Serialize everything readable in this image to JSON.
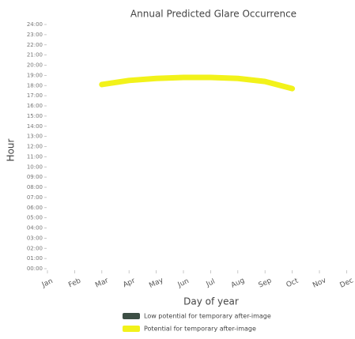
{
  "chart_data": {
    "type": "line",
    "title": "Annual Predicted Glare Occurrence",
    "x_label": "Day of year",
    "y_label": "Hour",
    "categories": [
      "Jan",
      "Feb",
      "Mar",
      "Apr",
      "May",
      "Jun",
      "Jul",
      "Aug",
      "Sep",
      "Oct",
      "Nov",
      "Dec"
    ],
    "series": [
      {
        "name": "Low potential for temporary after-image",
        "color": "#3d4f45",
        "values": [
          null,
          null,
          null,
          null,
          null,
          null,
          null,
          null,
          null,
          null,
          null,
          null
        ]
      },
      {
        "name": "Potential for temporary after-image",
        "color": "#f2f21a",
        "values": [
          null,
          null,
          18.1,
          18.5,
          18.7,
          18.8,
          18.8,
          18.7,
          18.4,
          17.7,
          null,
          null
        ]
      }
    ],
    "ylim": [
      0,
      24
    ],
    "yticks": [
      {
        "value": 0,
        "label": "00:00"
      },
      {
        "value": 1,
        "label": "01:00"
      },
      {
        "value": 2,
        "label": "02:00"
      },
      {
        "value": 3,
        "label": "03:00"
      },
      {
        "value": 4,
        "label": "04:00"
      },
      {
        "value": 5,
        "label": "05:00"
      },
      {
        "value": 6,
        "label": "06:00"
      },
      {
        "value": 7,
        "label": "07:00"
      },
      {
        "value": 8,
        "label": "08:00"
      },
      {
        "value": 9,
        "label": "09:00"
      },
      {
        "value": 10,
        "label": "10:00"
      },
      {
        "value": 11,
        "label": "11:00"
      },
      {
        "value": 12,
        "label": "12:00"
      },
      {
        "value": 13,
        "label": "13:00"
      },
      {
        "value": 14,
        "label": "14:00"
      },
      {
        "value": 15,
        "label": "15:00"
      },
      {
        "value": 16,
        "label": "16:00"
      },
      {
        "value": 17,
        "label": "17:00"
      },
      {
        "value": 18,
        "label": "18:00"
      },
      {
        "value": 19,
        "label": "19:00"
      },
      {
        "value": 20,
        "label": "20:00"
      },
      {
        "value": 21,
        "label": "21:00"
      },
      {
        "value": 22,
        "label": "22:00"
      },
      {
        "value": 23,
        "label": "23:00"
      },
      {
        "value": 24,
        "label": "24:00"
      }
    ],
    "grid": false,
    "legend": "bottom"
  }
}
